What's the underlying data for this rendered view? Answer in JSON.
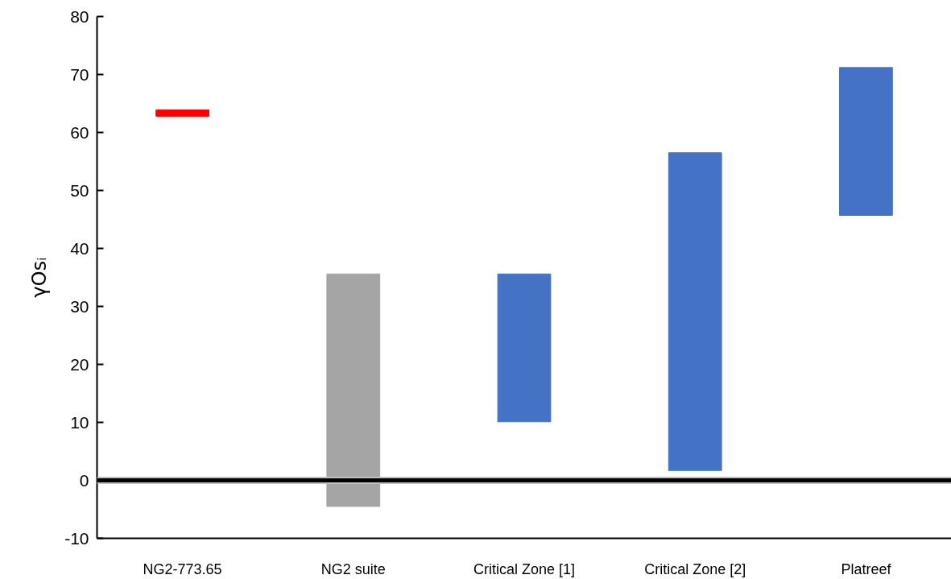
{
  "chart_data": {
    "type": "bar",
    "ylabel": "γOsᵢ",
    "categories": [
      "NG2-773.65",
      "NG2 suite",
      "Critical Zone [1]",
      "Critical Zone [2]",
      "Platreef"
    ],
    "base": [
      62.8,
      -4.5,
      10.1,
      1.7,
      45.7
    ],
    "values": [
      1.1,
      40.1,
      25.5,
      54.8,
      25.5
    ],
    "colors": [
      "#ff0000",
      "#a5a5a5",
      "#4472c4",
      "#4472c4",
      "#4472c4"
    ],
    "ylim": [
      -10,
      80
    ],
    "yticks": [
      -10,
      0,
      10,
      20,
      30,
      40,
      50,
      60,
      70,
      80
    ],
    "ref_lines": [
      {
        "axis": "y",
        "value": 0,
        "color": "#000000"
      }
    ]
  }
}
